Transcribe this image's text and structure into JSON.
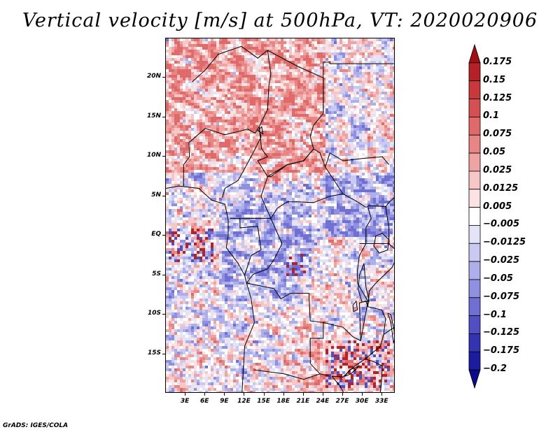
{
  "title": "Vertical velocity [m/s] at 500hPa, VT: 2020020906",
  "footer": "GrADS: IGES/COLA",
  "chart_data": {
    "type": "heatmap",
    "title": "Vertical velocity [m/s] at 500hPa, VT: 2020020906",
    "variable": "Vertical velocity",
    "units": "m/s",
    "level": "500hPa",
    "valid_time": "2020020906",
    "lon_range": [
      0,
      35
    ],
    "lat_range": [
      -20,
      25
    ],
    "lat_ticks": [
      {
        "value": 20,
        "label": "20N"
      },
      {
        "value": 15,
        "label": "15N"
      },
      {
        "value": 10,
        "label": "10N"
      },
      {
        "value": 5,
        "label": "5N"
      },
      {
        "value": 0,
        "label": "EQ"
      },
      {
        "value": -5,
        "label": "5S"
      },
      {
        "value": -10,
        "label": "10S"
      },
      {
        "value": -15,
        "label": "15S"
      }
    ],
    "lon_ticks": [
      {
        "value": 3,
        "label": "3E"
      },
      {
        "value": 6,
        "label": "6E"
      },
      {
        "value": 9,
        "label": "9E"
      },
      {
        "value": 12,
        "label": "12E"
      },
      {
        "value": 15,
        "label": "15E"
      },
      {
        "value": 18,
        "label": "18E"
      },
      {
        "value": 21,
        "label": "21E"
      },
      {
        "value": 24,
        "label": "24E"
      },
      {
        "value": 27,
        "label": "27E"
      },
      {
        "value": 30,
        "label": "30E"
      },
      {
        "value": 33,
        "label": "33E"
      }
    ],
    "colorbar": {
      "labels": [
        "0.175",
        "0.15",
        "0.125",
        "0.1",
        "0.075",
        "0.05",
        "0.025",
        "0.0125",
        "0.005",
        "−0.005",
        "−0.0125",
        "−0.025",
        "−0.05",
        "−0.075",
        "−0.1",
        "−0.125",
        "−0.175",
        "−0.2"
      ],
      "colors": [
        "#a00f14",
        "#b52126",
        "#c8383c",
        "#d55052",
        "#e06a6a",
        "#e88585",
        "#f0a3a3",
        "#f7c6c6",
        "#fbe3e3",
        "#ffffff",
        "#e4e4f8",
        "#c9c9f2",
        "#aeaeea",
        "#9090e0",
        "#7070d4",
        "#5050c4",
        "#3434b2",
        "#1c1ca0",
        "#0a0a8a"
      ]
    }
  }
}
